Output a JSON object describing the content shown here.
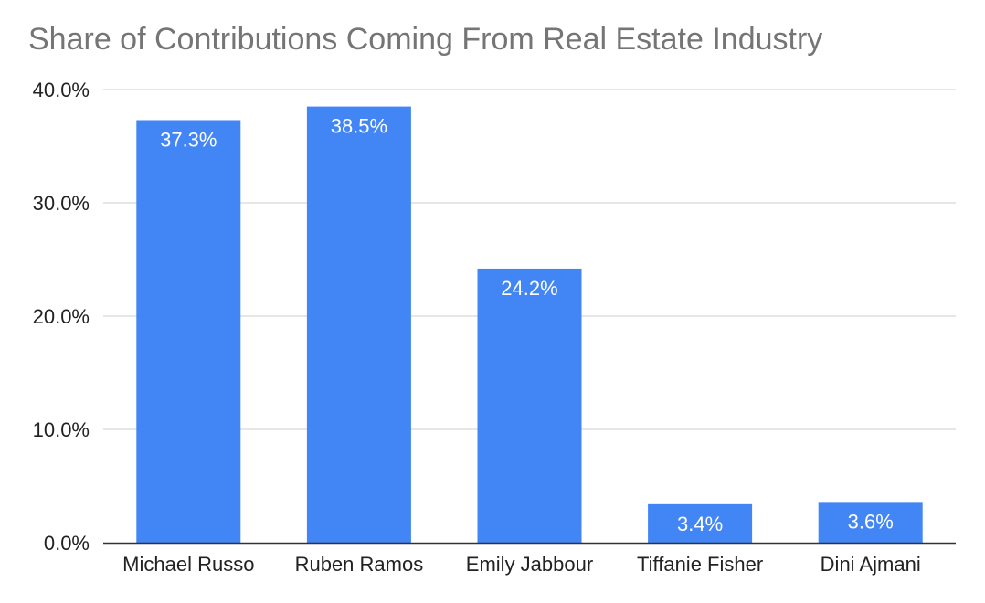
{
  "chart_data": {
    "type": "bar",
    "title": "Share of Contributions Coming From Real Estate Industry",
    "xlabel": "",
    "ylabel": "",
    "categories": [
      "Michael Russo",
      "Ruben Ramos",
      "Emily Jabbour",
      "Tiffanie Fisher",
      "Dini Ajmani"
    ],
    "values": [
      37.3,
      38.5,
      24.2,
      3.4,
      3.6
    ],
    "data_labels": [
      "37.3%",
      "38.5%",
      "24.2%",
      "3.4%",
      "3.6%"
    ],
    "ylim": [
      0,
      40
    ],
    "yticks": [
      0,
      10,
      20,
      30,
      40
    ],
    "ytick_labels": [
      "0.0%",
      "10.0%",
      "20.0%",
      "30.0%",
      "40.0%"
    ],
    "grid": true,
    "legend": "none",
    "colors": {
      "bar": "#4285f4",
      "grid": "#cccccc",
      "axis": "#333333",
      "title": "#757575",
      "text": "#222222",
      "data_label": "#ffffff"
    }
  }
}
